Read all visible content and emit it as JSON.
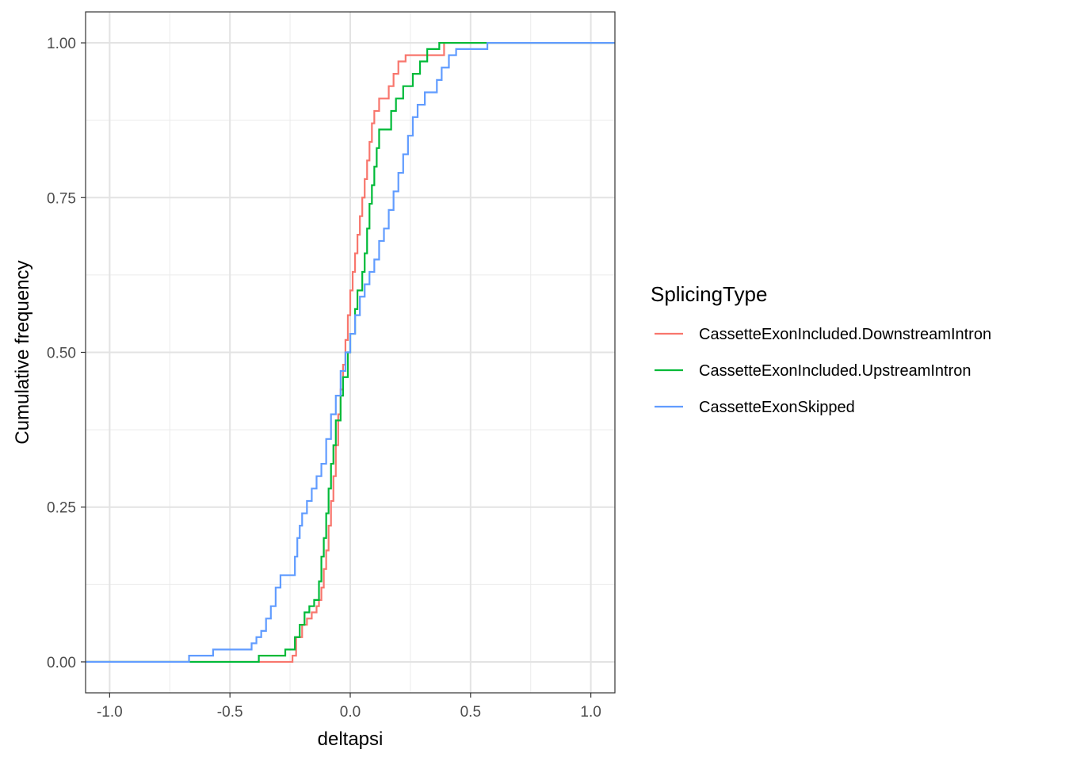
{
  "chart_data": {
    "type": "line",
    "subtype": "step-ecdf",
    "xlabel": "deltapsi",
    "ylabel": "Cumulative frequency",
    "xlim": [
      -1.1,
      1.1
    ],
    "ylim": [
      -0.05,
      1.05
    ],
    "x_ticks": [
      -1.0,
      -0.5,
      0.0,
      0.5,
      1.0
    ],
    "x_tick_labels": [
      "-1.0",
      "-0.5",
      "0.0",
      "0.5",
      "1.0"
    ],
    "y_ticks": [
      0.0,
      0.25,
      0.5,
      0.75,
      1.0
    ],
    "y_tick_labels": [
      "0.00",
      "0.25",
      "0.50",
      "0.75",
      "1.00"
    ],
    "grid": true,
    "legend": {
      "title": "SplicingType",
      "position": "right"
    },
    "series": [
      {
        "name": "CassetteExonIncluded.DownstreamIntron",
        "color": "#F8766D",
        "points": [
          [
            -1.1,
            0.0
          ],
          [
            -0.24,
            0.0
          ],
          [
            -0.24,
            0.01
          ],
          [
            -0.225,
            0.01
          ],
          [
            -0.225,
            0.04
          ],
          [
            -0.2,
            0.04
          ],
          [
            -0.2,
            0.06
          ],
          [
            -0.18,
            0.06
          ],
          [
            -0.18,
            0.07
          ],
          [
            -0.16,
            0.07
          ],
          [
            -0.16,
            0.08
          ],
          [
            -0.14,
            0.08
          ],
          [
            -0.14,
            0.09
          ],
          [
            -0.13,
            0.09
          ],
          [
            -0.13,
            0.1
          ],
          [
            -0.12,
            0.1
          ],
          [
            -0.12,
            0.12
          ],
          [
            -0.11,
            0.12
          ],
          [
            -0.11,
            0.15
          ],
          [
            -0.1,
            0.15
          ],
          [
            -0.1,
            0.18
          ],
          [
            -0.09,
            0.18
          ],
          [
            -0.09,
            0.22
          ],
          [
            -0.08,
            0.22
          ],
          [
            -0.08,
            0.26
          ],
          [
            -0.07,
            0.26
          ],
          [
            -0.07,
            0.3
          ],
          [
            -0.06,
            0.3
          ],
          [
            -0.06,
            0.35
          ],
          [
            -0.05,
            0.35
          ],
          [
            -0.05,
            0.4
          ],
          [
            -0.04,
            0.4
          ],
          [
            -0.04,
            0.44
          ],
          [
            -0.03,
            0.44
          ],
          [
            -0.03,
            0.48
          ],
          [
            -0.02,
            0.48
          ],
          [
            -0.02,
            0.52
          ],
          [
            -0.01,
            0.52
          ],
          [
            -0.01,
            0.56
          ],
          [
            0.0,
            0.56
          ],
          [
            0.0,
            0.6
          ],
          [
            0.01,
            0.6
          ],
          [
            0.01,
            0.63
          ],
          [
            0.02,
            0.63
          ],
          [
            0.02,
            0.66
          ],
          [
            0.03,
            0.66
          ],
          [
            0.03,
            0.69
          ],
          [
            0.04,
            0.69
          ],
          [
            0.04,
            0.72
          ],
          [
            0.05,
            0.72
          ],
          [
            0.05,
            0.75
          ],
          [
            0.06,
            0.75
          ],
          [
            0.06,
            0.78
          ],
          [
            0.07,
            0.78
          ],
          [
            0.07,
            0.81
          ],
          [
            0.08,
            0.81
          ],
          [
            0.08,
            0.84
          ],
          [
            0.09,
            0.84
          ],
          [
            0.09,
            0.87
          ],
          [
            0.1,
            0.87
          ],
          [
            0.1,
            0.89
          ],
          [
            0.12,
            0.89
          ],
          [
            0.12,
            0.91
          ],
          [
            0.16,
            0.91
          ],
          [
            0.16,
            0.93
          ],
          [
            0.18,
            0.93
          ],
          [
            0.18,
            0.95
          ],
          [
            0.2,
            0.95
          ],
          [
            0.2,
            0.97
          ],
          [
            0.23,
            0.97
          ],
          [
            0.23,
            0.98
          ],
          [
            0.39,
            0.98
          ],
          [
            0.39,
            1.0
          ],
          [
            1.1,
            1.0
          ]
        ]
      },
      {
        "name": "CassetteExonIncluded.UpstreamIntron",
        "color": "#00BA38",
        "points": [
          [
            -1.1,
            0.0
          ],
          [
            -0.38,
            0.0
          ],
          [
            -0.38,
            0.01
          ],
          [
            -0.27,
            0.01
          ],
          [
            -0.27,
            0.02
          ],
          [
            -0.23,
            0.02
          ],
          [
            -0.23,
            0.04
          ],
          [
            -0.21,
            0.04
          ],
          [
            -0.21,
            0.06
          ],
          [
            -0.19,
            0.06
          ],
          [
            -0.19,
            0.08
          ],
          [
            -0.17,
            0.08
          ],
          [
            -0.17,
            0.09
          ],
          [
            -0.15,
            0.09
          ],
          [
            -0.15,
            0.1
          ],
          [
            -0.13,
            0.1
          ],
          [
            -0.13,
            0.13
          ],
          [
            -0.12,
            0.13
          ],
          [
            -0.12,
            0.17
          ],
          [
            -0.11,
            0.17
          ],
          [
            -0.11,
            0.2
          ],
          [
            -0.1,
            0.2
          ],
          [
            -0.1,
            0.24
          ],
          [
            -0.09,
            0.24
          ],
          [
            -0.09,
            0.28
          ],
          [
            -0.08,
            0.28
          ],
          [
            -0.08,
            0.32
          ],
          [
            -0.07,
            0.32
          ],
          [
            -0.07,
            0.35
          ],
          [
            -0.06,
            0.35
          ],
          [
            -0.06,
            0.39
          ],
          [
            -0.04,
            0.39
          ],
          [
            -0.04,
            0.43
          ],
          [
            -0.03,
            0.43
          ],
          [
            -0.03,
            0.46
          ],
          [
            -0.01,
            0.46
          ],
          [
            -0.01,
            0.5
          ],
          [
            0.0,
            0.5
          ],
          [
            0.0,
            0.53
          ],
          [
            0.02,
            0.53
          ],
          [
            0.02,
            0.57
          ],
          [
            0.03,
            0.57
          ],
          [
            0.03,
            0.6
          ],
          [
            0.05,
            0.6
          ],
          [
            0.05,
            0.63
          ],
          [
            0.06,
            0.63
          ],
          [
            0.06,
            0.66
          ],
          [
            0.07,
            0.66
          ],
          [
            0.07,
            0.7
          ],
          [
            0.08,
            0.7
          ],
          [
            0.08,
            0.74
          ],
          [
            0.09,
            0.74
          ],
          [
            0.09,
            0.77
          ],
          [
            0.1,
            0.77
          ],
          [
            0.1,
            0.8
          ],
          [
            0.11,
            0.8
          ],
          [
            0.11,
            0.83
          ],
          [
            0.12,
            0.83
          ],
          [
            0.12,
            0.86
          ],
          [
            0.17,
            0.86
          ],
          [
            0.17,
            0.89
          ],
          [
            0.19,
            0.89
          ],
          [
            0.19,
            0.91
          ],
          [
            0.22,
            0.91
          ],
          [
            0.22,
            0.93
          ],
          [
            0.26,
            0.93
          ],
          [
            0.26,
            0.95
          ],
          [
            0.29,
            0.95
          ],
          [
            0.29,
            0.97
          ],
          [
            0.32,
            0.97
          ],
          [
            0.32,
            0.99
          ],
          [
            0.37,
            0.99
          ],
          [
            0.37,
            1.0
          ],
          [
            1.1,
            1.0
          ]
        ]
      },
      {
        "name": "CassetteExonSkipped",
        "color": "#619CFF",
        "points": [
          [
            -1.1,
            0.0
          ],
          [
            -0.67,
            0.0
          ],
          [
            -0.67,
            0.01
          ],
          [
            -0.57,
            0.01
          ],
          [
            -0.57,
            0.02
          ],
          [
            -0.41,
            0.02
          ],
          [
            -0.41,
            0.03
          ],
          [
            -0.39,
            0.03
          ],
          [
            -0.39,
            0.04
          ],
          [
            -0.37,
            0.04
          ],
          [
            -0.37,
            0.05
          ],
          [
            -0.35,
            0.05
          ],
          [
            -0.35,
            0.07
          ],
          [
            -0.33,
            0.07
          ],
          [
            -0.33,
            0.09
          ],
          [
            -0.31,
            0.09
          ],
          [
            -0.31,
            0.12
          ],
          [
            -0.29,
            0.12
          ],
          [
            -0.29,
            0.14
          ],
          [
            -0.23,
            0.14
          ],
          [
            -0.23,
            0.17
          ],
          [
            -0.22,
            0.17
          ],
          [
            -0.22,
            0.2
          ],
          [
            -0.21,
            0.2
          ],
          [
            -0.21,
            0.22
          ],
          [
            -0.2,
            0.22
          ],
          [
            -0.2,
            0.24
          ],
          [
            -0.18,
            0.24
          ],
          [
            -0.18,
            0.26
          ],
          [
            -0.16,
            0.26
          ],
          [
            -0.16,
            0.28
          ],
          [
            -0.14,
            0.28
          ],
          [
            -0.14,
            0.3
          ],
          [
            -0.12,
            0.3
          ],
          [
            -0.12,
            0.32
          ],
          [
            -0.1,
            0.32
          ],
          [
            -0.1,
            0.36
          ],
          [
            -0.08,
            0.36
          ],
          [
            -0.08,
            0.4
          ],
          [
            -0.06,
            0.4
          ],
          [
            -0.06,
            0.43
          ],
          [
            -0.04,
            0.43
          ],
          [
            -0.04,
            0.47
          ],
          [
            -0.02,
            0.47
          ],
          [
            -0.02,
            0.5
          ],
          [
            0.0,
            0.5
          ],
          [
            0.0,
            0.53
          ],
          [
            0.02,
            0.53
          ],
          [
            0.02,
            0.56
          ],
          [
            0.04,
            0.56
          ],
          [
            0.04,
            0.59
          ],
          [
            0.06,
            0.59
          ],
          [
            0.06,
            0.61
          ],
          [
            0.08,
            0.61
          ],
          [
            0.08,
            0.63
          ],
          [
            0.1,
            0.63
          ],
          [
            0.1,
            0.65
          ],
          [
            0.12,
            0.65
          ],
          [
            0.12,
            0.68
          ],
          [
            0.14,
            0.68
          ],
          [
            0.14,
            0.7
          ],
          [
            0.16,
            0.7
          ],
          [
            0.16,
            0.73
          ],
          [
            0.18,
            0.73
          ],
          [
            0.18,
            0.76
          ],
          [
            0.2,
            0.76
          ],
          [
            0.2,
            0.79
          ],
          [
            0.22,
            0.79
          ],
          [
            0.22,
            0.82
          ],
          [
            0.24,
            0.82
          ],
          [
            0.24,
            0.85
          ],
          [
            0.26,
            0.85
          ],
          [
            0.26,
            0.88
          ],
          [
            0.28,
            0.88
          ],
          [
            0.28,
            0.9
          ],
          [
            0.31,
            0.9
          ],
          [
            0.31,
            0.92
          ],
          [
            0.36,
            0.92
          ],
          [
            0.36,
            0.94
          ],
          [
            0.38,
            0.94
          ],
          [
            0.38,
            0.96
          ],
          [
            0.41,
            0.96
          ],
          [
            0.41,
            0.98
          ],
          [
            0.44,
            0.98
          ],
          [
            0.44,
            0.99
          ],
          [
            0.57,
            0.99
          ],
          [
            0.57,
            1.0
          ],
          [
            1.1,
            1.0
          ]
        ]
      }
    ]
  }
}
